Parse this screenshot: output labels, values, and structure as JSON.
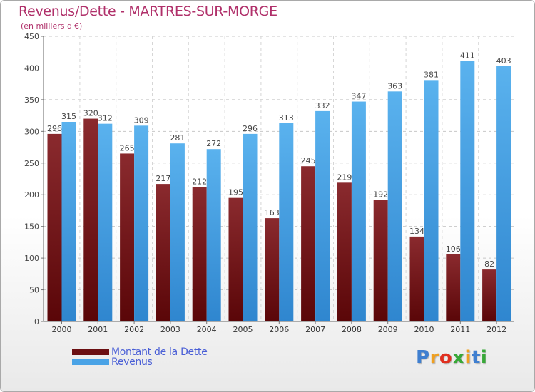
{
  "chart_data": {
    "type": "bar",
    "title": "Revenus/Dette - MARTRES-SUR-MORGE",
    "subtitle": "(en milliers d'€)",
    "categories": [
      "2000",
      "2001",
      "2002",
      "2003",
      "2004",
      "2005",
      "2006",
      "2007",
      "2008",
      "2009",
      "2010",
      "2011",
      "2012"
    ],
    "series": [
      {
        "name": "Montant de la Dette",
        "color": "#6b0f12",
        "values": [
          296,
          320,
          265,
          217,
          212,
          195,
          163,
          245,
          219,
          192,
          134,
          106,
          82
        ]
      },
      {
        "name": "Revenus",
        "color": "#4aa3e6",
        "values": [
          315,
          312,
          309,
          281,
          272,
          296,
          313,
          332,
          347,
          363,
          381,
          411,
          403
        ]
      }
    ],
    "ylim": [
      0,
      450
    ],
    "yticks": [
      0,
      50,
      100,
      150,
      200,
      250,
      300,
      350,
      400,
      450
    ],
    "grid": true,
    "legend_position": "bottom-left"
  },
  "logo": {
    "text": "Proxiti",
    "letters": [
      {
        "ch": "P",
        "color": "#3f7fd0"
      },
      {
        "ch": "r",
        "color": "#f0a020"
      },
      {
        "ch": "o",
        "color": "#e03020"
      },
      {
        "ch": "x",
        "color": "#38a838"
      },
      {
        "ch": "i",
        "color": "#f0a020"
      },
      {
        "ch": "t",
        "color": "#3f7fd0"
      },
      {
        "ch": "i",
        "color": "#38a838"
      }
    ]
  }
}
